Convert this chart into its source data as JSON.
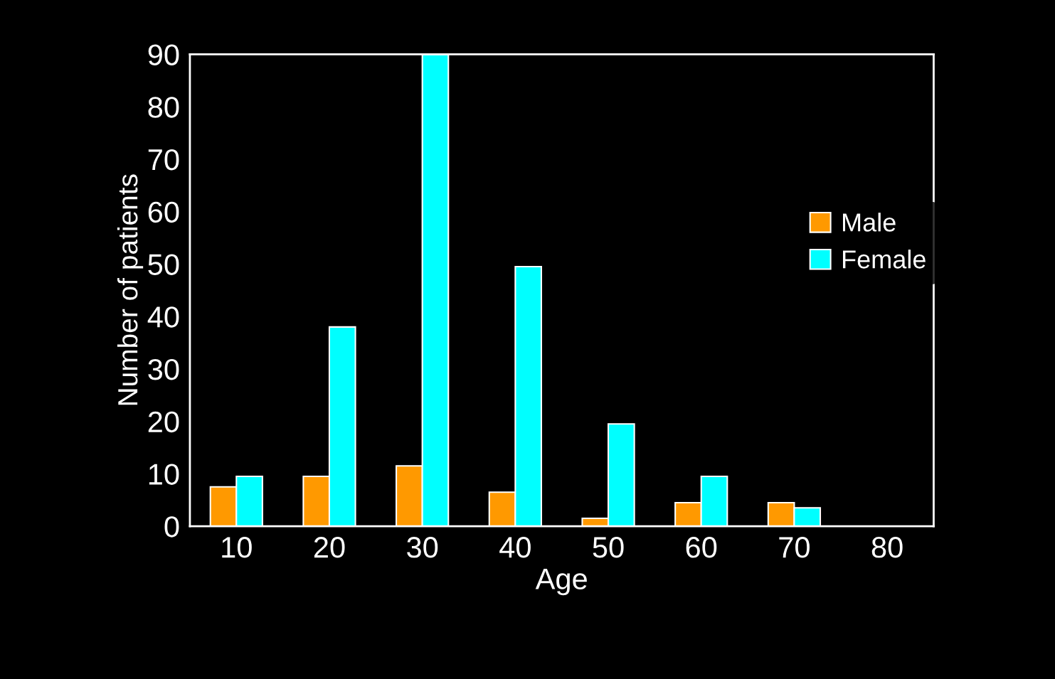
{
  "chart_data": {
    "type": "bar",
    "xlabel": "Age",
    "ylabel": "Number of patients",
    "categories": [
      "10",
      "20",
      "30",
      "40",
      "50",
      "60",
      "70",
      "80"
    ],
    "series": [
      {
        "name": "Male",
        "color": "#ff9900",
        "values": [
          7.5,
          9.5,
          11.5,
          6.5,
          1.5,
          4.5,
          4.5,
          0
        ]
      },
      {
        "name": "Female",
        "color": "#00ffff",
        "values": [
          9.5,
          38,
          90,
          49.5,
          19.5,
          9.5,
          3.5,
          0
        ]
      }
    ],
    "ylim": [
      0,
      90
    ],
    "yticks": [
      0,
      10,
      20,
      30,
      40,
      50,
      60,
      70,
      80,
      90
    ],
    "grid": false,
    "legend": "right"
  }
}
